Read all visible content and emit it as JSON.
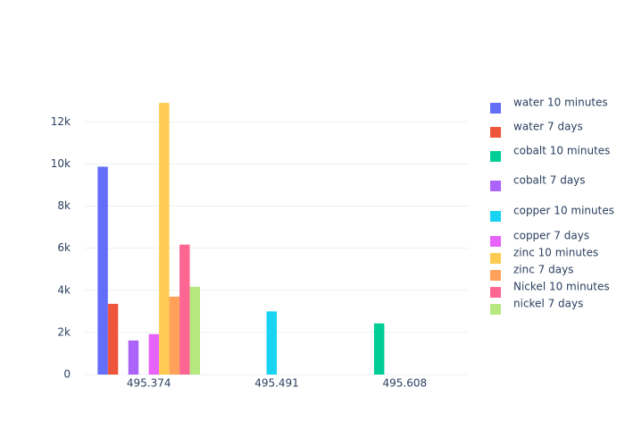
{
  "chart_data": {
    "type": "bar",
    "categories": [
      "495.374",
      "495.491",
      "495.608"
    ],
    "series": [
      {
        "name": "water 10 minutes",
        "color": "#636efa",
        "values": [
          9870,
          0,
          0
        ]
      },
      {
        "name": "water 7 days",
        "color": "#ef553b",
        "values": [
          3360,
          0,
          0
        ]
      },
      {
        "name": "cobalt 10 minutes",
        "color": "#00cc96",
        "values": [
          0,
          0,
          2430
        ]
      },
      {
        "name": "cobalt 7 days",
        "color": "#ab63fa",
        "values": [
          1620,
          0,
          0
        ]
      },
      {
        "name": "copper 10 minutes",
        "color": "#19d3f3",
        "values": [
          0,
          3000,
          0
        ]
      },
      {
        "name": "copper 7 days",
        "color": "#e763fa",
        "values": [
          1920,
          0,
          0
        ]
      },
      {
        "name": "zinc 10 minutes",
        "color": "#fecb52",
        "values": [
          12900,
          0,
          0
        ]
      },
      {
        "name": "zinc 7 days",
        "color": "#ffa15a",
        "values": [
          3700,
          0,
          0
        ]
      },
      {
        "name": "Nickel 10 minutes",
        "color": "#ff6692",
        "values": [
          6170,
          0,
          0
        ]
      },
      {
        "name": "nickel 7 days",
        "color": "#b6e880",
        "values": [
          4170,
          0,
          0
        ]
      }
    ],
    "ylim": [
      0,
      13540
    ],
    "yticks": [
      0,
      {
        "value": 2000,
        "label": "2k"
      },
      {
        "value": 4000,
        "label": "4k"
      },
      {
        "value": 6000,
        "label": "6k"
      },
      {
        "value": 8000,
        "label": "8k"
      },
      {
        "value": 10000,
        "label": "10k"
      },
      {
        "value": 12000,
        "label": "12k"
      }
    ],
    "grid": true
  }
}
